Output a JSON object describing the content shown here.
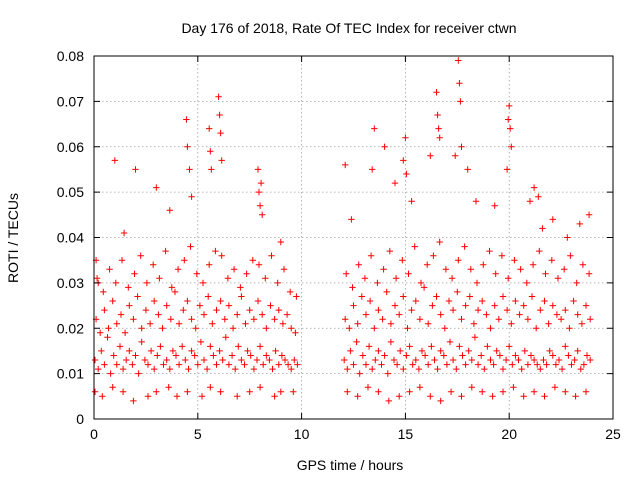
{
  "chart_data": {
    "type": "scatter",
    "title": "Day 176 of 2018, Rate Of TEC Index for receiver ctwn",
    "xlabel": "GPS time / hours",
    "ylabel": "ROTI / TECUs",
    "xlim": [
      0,
      25
    ],
    "ylim": [
      0,
      0.08
    ],
    "xticks": [
      0,
      5,
      10,
      15,
      20,
      25
    ],
    "xtick_labels": [
      "0",
      "5",
      "10",
      "15",
      "20",
      "25"
    ],
    "yticks": [
      0,
      0.01,
      0.02,
      0.03,
      0.04,
      0.05,
      0.06,
      0.07,
      0.08
    ],
    "ytick_labels": [
      "0",
      "0.01",
      "0.02",
      "0.03",
      "0.04",
      "0.05",
      "0.06",
      "0.07",
      "0.08"
    ],
    "grid": true,
    "marker": "+",
    "colors": {
      "series": "#ff0000",
      "grid": "#a0a0a0"
    },
    "series": [
      {
        "name": "ROTI",
        "x": [
          0.05,
          0.2,
          0.35,
          0.5,
          0.65,
          0.8,
          0.95,
          1.1,
          1.25,
          1.4,
          1.55,
          1.7,
          1.85,
          2.0,
          2.15,
          2.3,
          2.45,
          2.6,
          2.75,
          2.9,
          3.05,
          3.2,
          3.35,
          3.5,
          3.65,
          3.8,
          3.95,
          4.1,
          4.25,
          4.4,
          4.55,
          4.7,
          4.85,
          5.0,
          5.15,
          5.3,
          5.45,
          5.6,
          5.75,
          5.9,
          6.05,
          6.2,
          6.35,
          6.5,
          6.65,
          6.8,
          6.95,
          7.1,
          7.25,
          7.4,
          7.55,
          7.7,
          7.85,
          8.0,
          8.15,
          8.3,
          8.45,
          8.6,
          8.75,
          8.9,
          9.05,
          9.2,
          9.35,
          9.5,
          9.65,
          9.8,
          0.1,
          0.3,
          0.5,
          0.7,
          0.9,
          1.1,
          1.3,
          1.5,
          1.7,
          1.9,
          2.1,
          2.3,
          2.5,
          2.7,
          2.9,
          3.1,
          3.3,
          3.5,
          3.7,
          3.9,
          4.1,
          4.3,
          4.5,
          4.7,
          4.9,
          5.1,
          5.3,
          5.5,
          5.7,
          5.9,
          6.1,
          6.3,
          6.5,
          6.7,
          6.9,
          7.1,
          7.3,
          7.5,
          7.7,
          7.9,
          8.1,
          8.3,
          8.5,
          8.7,
          8.9,
          9.1,
          9.3,
          9.5,
          9.7,
          0.15,
          0.45,
          0.75,
          1.05,
          1.35,
          1.65,
          1.95,
          2.25,
          2.55,
          2.85,
          3.15,
          3.45,
          3.75,
          4.05,
          4.35,
          4.65,
          4.95,
          5.25,
          5.55,
          5.85,
          6.15,
          6.45,
          6.75,
          7.05,
          7.35,
          7.65,
          7.95,
          8.25,
          8.55,
          8.85,
          9.15,
          9.45,
          9.75,
          0.05,
          0.4,
          0.9,
          1.4,
          1.9,
          2.6,
          3.0,
          3.6,
          4.0,
          4.5,
          5.2,
          5.6,
          6.1,
          6.9,
          7.5,
          8.0,
          8.7,
          9.0,
          9.6,
          1.0,
          1.45,
          2.0,
          3.0,
          3.65,
          4.45,
          4.5,
          4.6,
          4.7,
          5.55,
          5.6,
          5.65,
          6.0,
          6.05,
          6.1,
          6.15,
          7.9,
          7.95,
          8.0,
          8.05,
          8.1,
          0.1,
          0.2,
          9.0,
          12.05,
          12.2,
          12.35,
          12.5,
          12.65,
          12.8,
          12.95,
          13.1,
          13.25,
          13.4,
          13.55,
          13.7,
          13.85,
          14.0,
          14.15,
          14.3,
          14.45,
          14.6,
          14.75,
          14.9,
          15.05,
          15.2,
          15.35,
          15.5,
          15.65,
          15.8,
          15.95,
          16.1,
          16.25,
          16.4,
          16.55,
          16.7,
          16.85,
          17.0,
          17.15,
          17.3,
          17.45,
          17.6,
          17.75,
          17.9,
          18.05,
          18.2,
          18.35,
          18.5,
          18.65,
          18.8,
          18.95,
          19.1,
          19.25,
          19.4,
          19.55,
          19.7,
          19.85,
          20.0,
          20.15,
          20.3,
          20.45,
          20.6,
          20.75,
          20.9,
          21.05,
          21.2,
          21.35,
          21.5,
          21.65,
          21.8,
          21.95,
          22.1,
          22.25,
          22.4,
          22.55,
          22.7,
          22.85,
          23.0,
          23.15,
          23.3,
          23.45,
          23.6,
          23.75,
          23.9,
          12.1,
          12.3,
          12.5,
          12.7,
          12.9,
          13.1,
          13.3,
          13.5,
          13.7,
          13.9,
          14.1,
          14.3,
          14.5,
          14.7,
          14.9,
          15.1,
          15.3,
          15.5,
          15.7,
          15.9,
          16.1,
          16.3,
          16.5,
          16.7,
          16.9,
          17.1,
          17.3,
          17.5,
          17.7,
          17.9,
          18.1,
          18.3,
          18.5,
          18.7,
          18.9,
          19.1,
          19.3,
          19.5,
          19.7,
          19.9,
          20.1,
          20.3,
          20.5,
          20.7,
          20.9,
          21.1,
          21.3,
          21.5,
          21.7,
          21.9,
          22.1,
          22.3,
          22.5,
          22.7,
          22.9,
          23.1,
          23.3,
          23.5,
          23.7,
          23.9,
          12.15,
          12.45,
          12.75,
          13.05,
          13.35,
          13.65,
          13.95,
          14.25,
          14.55,
          14.85,
          15.15,
          15.45,
          15.75,
          16.05,
          16.35,
          16.65,
          16.95,
          17.25,
          17.55,
          17.85,
          18.15,
          18.45,
          18.75,
          19.05,
          19.35,
          19.65,
          19.95,
          20.25,
          20.55,
          20.85,
          21.15,
          21.45,
          21.75,
          22.05,
          22.35,
          22.65,
          22.95,
          23.25,
          23.55,
          23.85,
          12.2,
          12.7,
          13.2,
          13.7,
          14.2,
          14.7,
          15.2,
          15.7,
          16.2,
          16.7,
          17.2,
          17.7,
          18.2,
          18.7,
          19.2,
          19.7,
          20.2,
          20.7,
          21.2,
          21.7,
          22.2,
          22.7,
          23.2,
          23.7,
          12.1,
          12.4,
          13.4,
          13.5,
          14.0,
          14.5,
          14.9,
          15.0,
          15.05,
          15.3,
          16.2,
          16.5,
          16.55,
          16.6,
          16.65,
          17.4,
          17.55,
          17.6,
          17.65,
          17.7,
          18.0,
          18.4,
          19.3,
          19.9,
          19.95,
          20.0,
          20.05,
          20.1,
          21.0,
          21.2,
          21.4,
          21.6,
          22.1,
          22.8,
          23.4,
          23.85
        ],
        "y": [
          0.013,
          0.011,
          0.015,
          0.012,
          0.018,
          0.01,
          0.014,
          0.012,
          0.016,
          0.011,
          0.013,
          0.015,
          0.012,
          0.014,
          0.01,
          0.017,
          0.013,
          0.012,
          0.015,
          0.011,
          0.014,
          0.016,
          0.012,
          0.013,
          0.011,
          0.015,
          0.014,
          0.012,
          0.016,
          0.013,
          0.011,
          0.015,
          0.014,
          0.012,
          0.017,
          0.013,
          0.011,
          0.016,
          0.014,
          0.012,
          0.015,
          0.013,
          0.018,
          0.012,
          0.014,
          0.011,
          0.016,
          0.013,
          0.012,
          0.015,
          0.014,
          0.011,
          0.013,
          0.016,
          0.012,
          0.014,
          0.013,
          0.011,
          0.015,
          0.012,
          0.014,
          0.013,
          0.012,
          0.011,
          0.013,
          0.012,
          0.022,
          0.019,
          0.024,
          0.02,
          0.026,
          0.021,
          0.023,
          0.019,
          0.025,
          0.022,
          0.027,
          0.02,
          0.024,
          0.021,
          0.026,
          0.023,
          0.02,
          0.025,
          0.022,
          0.028,
          0.021,
          0.024,
          0.026,
          0.022,
          0.02,
          0.025,
          0.023,
          0.027,
          0.021,
          0.024,
          0.026,
          0.022,
          0.025,
          0.02,
          0.023,
          0.027,
          0.021,
          0.024,
          0.022,
          0.026,
          0.023,
          0.02,
          0.025,
          0.022,
          0.024,
          0.021,
          0.023,
          0.02,
          0.019,
          0.031,
          0.028,
          0.033,
          0.03,
          0.035,
          0.029,
          0.032,
          0.036,
          0.03,
          0.034,
          0.031,
          0.037,
          0.029,
          0.033,
          0.035,
          0.038,
          0.032,
          0.03,
          0.034,
          0.037,
          0.036,
          0.031,
          0.033,
          0.029,
          0.032,
          0.035,
          0.034,
          0.031,
          0.036,
          0.03,
          0.033,
          0.028,
          0.027,
          0.006,
          0.005,
          0.007,
          0.006,
          0.004,
          0.005,
          0.006,
          0.007,
          0.005,
          0.006,
          0.005,
          0.007,
          0.006,
          0.005,
          0.006,
          0.007,
          0.005,
          0.006,
          0.006,
          0.057,
          0.041,
          0.055,
          0.051,
          0.046,
          0.066,
          0.06,
          0.055,
          0.049,
          0.064,
          0.059,
          0.055,
          0.071,
          0.067,
          0.063,
          0.057,
          0.055,
          0.05,
          0.047,
          0.052,
          0.045,
          0.035,
          0.03,
          0.039,
          0.013,
          0.011,
          0.015,
          0.012,
          0.017,
          0.01,
          0.014,
          0.012,
          0.016,
          0.011,
          0.013,
          0.015,
          0.012,
          0.014,
          0.01,
          0.017,
          0.013,
          0.012,
          0.015,
          0.011,
          0.014,
          0.016,
          0.012,
          0.013,
          0.011,
          0.015,
          0.014,
          0.012,
          0.016,
          0.013,
          0.011,
          0.015,
          0.014,
          0.012,
          0.017,
          0.013,
          0.011,
          0.016,
          0.014,
          0.012,
          0.015,
          0.013,
          0.018,
          0.012,
          0.014,
          0.011,
          0.016,
          0.013,
          0.012,
          0.015,
          0.014,
          0.011,
          0.013,
          0.016,
          0.012,
          0.014,
          0.013,
          0.011,
          0.015,
          0.012,
          0.014,
          0.013,
          0.012,
          0.011,
          0.013,
          0.012,
          0.015,
          0.014,
          0.012,
          0.013,
          0.011,
          0.016,
          0.014,
          0.012,
          0.013,
          0.015,
          0.011,
          0.012,
          0.014,
          0.013,
          0.022,
          0.02,
          0.025,
          0.021,
          0.027,
          0.023,
          0.026,
          0.02,
          0.024,
          0.022,
          0.028,
          0.021,
          0.025,
          0.023,
          0.027,
          0.02,
          0.024,
          0.026,
          0.022,
          0.029,
          0.021,
          0.025,
          0.027,
          0.023,
          0.02,
          0.026,
          0.024,
          0.028,
          0.022,
          0.025,
          0.027,
          0.021,
          0.024,
          0.026,
          0.023,
          0.02,
          0.025,
          0.022,
          0.027,
          0.024,
          0.021,
          0.026,
          0.023,
          0.025,
          0.022,
          0.027,
          0.02,
          0.024,
          0.026,
          0.021,
          0.025,
          0.023,
          0.022,
          0.024,
          0.02,
          0.026,
          0.023,
          0.021,
          0.025,
          0.022,
          0.032,
          0.029,
          0.034,
          0.031,
          0.036,
          0.03,
          0.033,
          0.037,
          0.031,
          0.035,
          0.032,
          0.038,
          0.03,
          0.034,
          0.036,
          0.039,
          0.033,
          0.031,
          0.035,
          0.038,
          0.033,
          0.03,
          0.034,
          0.037,
          0.032,
          0.036,
          0.031,
          0.035,
          0.033,
          0.03,
          0.034,
          0.037,
          0.032,
          0.035,
          0.031,
          0.033,
          0.036,
          0.03,
          0.034,
          0.032,
          0.006,
          0.005,
          0.007,
          0.006,
          0.004,
          0.005,
          0.006,
          0.007,
          0.005,
          0.004,
          0.006,
          0.005,
          0.007,
          0.006,
          0.005,
          0.006,
          0.007,
          0.005,
          0.006,
          0.005,
          0.007,
          0.006,
          0.005,
          0.006,
          0.056,
          0.044,
          0.055,
          0.064,
          0.06,
          0.052,
          0.057,
          0.062,
          0.054,
          0.048,
          0.058,
          0.072,
          0.067,
          0.064,
          0.062,
          0.058,
          0.079,
          0.074,
          0.07,
          0.06,
          0.055,
          0.048,
          0.047,
          0.055,
          0.066,
          0.069,
          0.064,
          0.06,
          0.048,
          0.051,
          0.049,
          0.042,
          0.044,
          0.04,
          0.043,
          0.045
        ]
      }
    ]
  }
}
